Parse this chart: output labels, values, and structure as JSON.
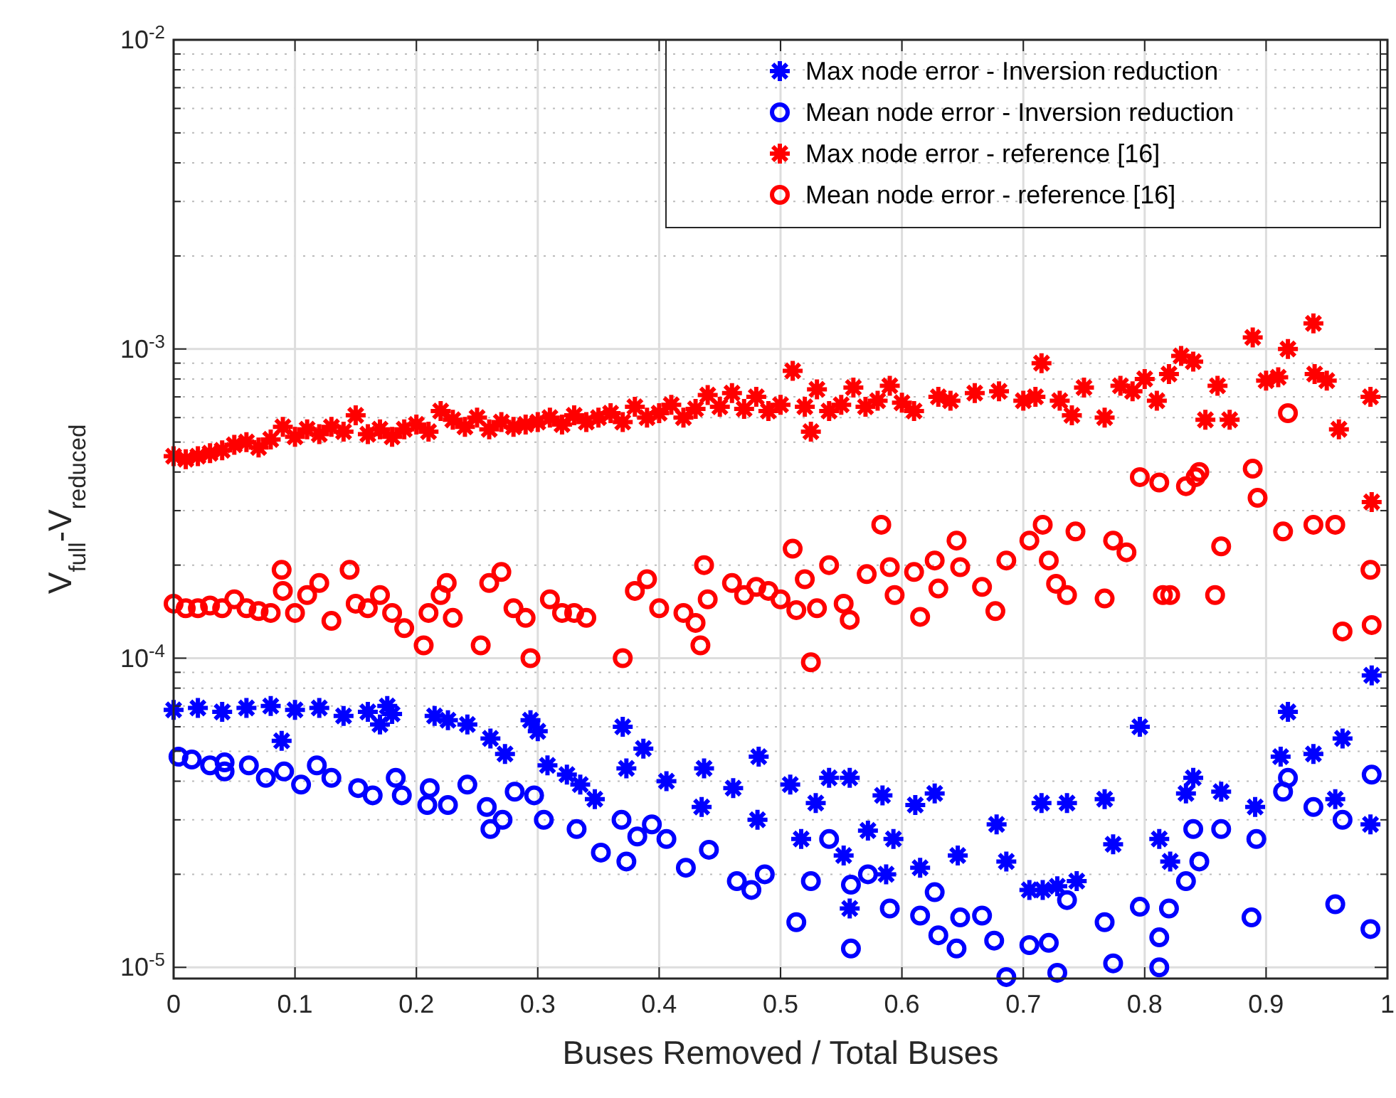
{
  "chart_data": {
    "type": "scatter",
    "xlabel": "Buses Removed / Total Buses",
    "ylabel": "V$_{full}$-V$_{reduced}$",
    "log": "y",
    "grid": true,
    "legend": "top right",
    "xlim": [
      0,
      1
    ],
    "ylim": [
      9.2e-06,
      0.01
    ],
    "xticks": [
      0,
      0.1,
      0.2,
      0.3,
      0.4,
      0.5,
      0.6,
      0.7,
      0.8,
      0.9,
      1
    ],
    "yticks": [
      {
        "value": 1e-05,
        "label": "10$^{-5}$"
      },
      {
        "value": 0.0001,
        "label": "10$^{-4}$"
      },
      {
        "value": 0.001,
        "label": "10$^{-3}$"
      },
      {
        "value": 0.01,
        "label": "10$^{-2}$"
      }
    ],
    "series": [
      {
        "name": "Max node error - Inversion reduction",
        "color": "#0000ff",
        "marker": "cross",
        "x": [
          0,
          0.02,
          0.04,
          0.06,
          0.08,
          0.089,
          0.1,
          0.12,
          0.14,
          0.16,
          0.17,
          0.176,
          0.18,
          0.215,
          0.226,
          0.242,
          0.261,
          0.273,
          0.294,
          0.3,
          0.308,
          0.324,
          0.335,
          0.347,
          0.37,
          0.373,
          0.387,
          0.406,
          0.435,
          0.437,
          0.461,
          0.481,
          0.482,
          0.508,
          0.517,
          0.529,
          0.54,
          0.552,
          0.557,
          0.557,
          0.572,
          0.584,
          0.587,
          0.593,
          0.611,
          0.615,
          0.627,
          0.646,
          0.678,
          0.686,
          0.705,
          0.715,
          0.716,
          0.728,
          0.736,
          0.744,
          0.767,
          0.774,
          0.796,
          0.812,
          0.821,
          0.834,
          0.84,
          0.863,
          0.891,
          0.912,
          0.918,
          0.939,
          0.957,
          0.963,
          0.986,
          0.987
        ],
        "values": [
          6.8e-05,
          6.9e-05,
          6.7e-05,
          6.9e-05,
          7e-05,
          5.4e-05,
          6.8e-05,
          6.9e-05,
          6.5e-05,
          6.7e-05,
          6.1e-05,
          7e-05,
          6.6e-05,
          6.5e-05,
          6.3e-05,
          6.1e-05,
          5.5e-05,
          4.9e-05,
          6.3e-05,
          5.8e-05,
          4.5e-05,
          4.2e-05,
          3.9e-05,
          3.5e-05,
          6e-05,
          4.4e-05,
          5.1e-05,
          4e-05,
          3.3e-05,
          4.4e-05,
          3.8e-05,
          3e-05,
          4.8e-05,
          3.9e-05,
          2.6e-05,
          3.4e-05,
          4.1e-05,
          2.3e-05,
          4.1e-05,
          1.55e-05,
          2.77e-05,
          3.6e-05,
          2e-05,
          2.6e-05,
          3.35e-05,
          2.1e-05,
          3.65e-05,
          2.3e-05,
          2.9e-05,
          2.2e-05,
          1.78e-05,
          3.4e-05,
          1.78e-05,
          1.83e-05,
          3.4e-05,
          1.9e-05,
          3.5e-05,
          2.5e-05,
          6e-05,
          2.6e-05,
          2.2e-05,
          3.65e-05,
          4.1e-05,
          3.7e-05,
          3.3e-05,
          4.8e-05,
          6.7e-05,
          4.9e-05,
          3.5e-05,
          5.5e-05,
          2.9e-05,
          8.8e-05
        ]
      },
      {
        "name": "Mean node error - Inversion reduction",
        "color": "#0000ff",
        "marker": "circle",
        "x": [
          0.004,
          0.015,
          0.03,
          0.042,
          0.042,
          0.062,
          0.076,
          0.091,
          0.105,
          0.118,
          0.13,
          0.152,
          0.164,
          0.183,
          0.188,
          0.209,
          0.211,
          0.226,
          0.242,
          0.258,
          0.261,
          0.271,
          0.281,
          0.297,
          0.305,
          0.332,
          0.352,
          0.369,
          0.373,
          0.382,
          0.394,
          0.406,
          0.422,
          0.441,
          0.464,
          0.476,
          0.487,
          0.513,
          0.525,
          0.54,
          0.558,
          0.558,
          0.572,
          0.59,
          0.615,
          0.627,
          0.63,
          0.645,
          0.648,
          0.666,
          0.676,
          0.686,
          0.705,
          0.721,
          0.728,
          0.736,
          0.767,
          0.774,
          0.796,
          0.812,
          0.812,
          0.82,
          0.834,
          0.84,
          0.845,
          0.863,
          0.888,
          0.892,
          0.914,
          0.918,
          0.939,
          0.957,
          0.963,
          0.986,
          0.987
        ],
        "values": [
          4.8e-05,
          4.7e-05,
          4.5e-05,
          4.6e-05,
          4.3e-05,
          4.5e-05,
          4.1e-05,
          4.3e-05,
          3.9e-05,
          4.5e-05,
          4.1e-05,
          3.8e-05,
          3.6e-05,
          4.1e-05,
          3.6e-05,
          3.35e-05,
          3.8e-05,
          3.35e-05,
          3.9e-05,
          3.3e-05,
          2.8e-05,
          3e-05,
          3.7e-05,
          3.6e-05,
          3e-05,
          2.8e-05,
          2.35e-05,
          3e-05,
          2.2e-05,
          2.65e-05,
          2.9e-05,
          2.6e-05,
          2.1e-05,
          2.4e-05,
          1.9e-05,
          1.78e-05,
          2e-05,
          1.4e-05,
          1.9e-05,
          2.6e-05,
          1.85e-05,
          1.15e-05,
          2e-05,
          1.55e-05,
          1.47e-05,
          1.75e-05,
          1.27e-05,
          1.15e-05,
          1.45e-05,
          1.47e-05,
          1.22e-05,
          9.3e-06,
          1.18e-05,
          1.2e-05,
          9.6e-06,
          1.65e-05,
          1.4e-05,
          1.03e-05,
          1.57e-05,
          1.25e-05,
          1e-05,
          1.55e-05,
          1.9e-05,
          2.8e-05,
          2.2e-05,
          2.8e-05,
          1.45e-05,
          2.6e-05,
          3.7e-05,
          4.1e-05,
          3.3e-05,
          1.6e-05,
          3e-05,
          1.33e-05,
          4.2e-05
        ]
      },
      {
        "name": "Max node error - reference [16]",
        "color": "#ff0000",
        "marker": "cross",
        "x": [
          0,
          0.01,
          0.02,
          0.03,
          0.04,
          0.05,
          0.06,
          0.07,
          0.08,
          0.09,
          0.1,
          0.11,
          0.12,
          0.13,
          0.14,
          0.15,
          0.16,
          0.17,
          0.18,
          0.19,
          0.2,
          0.21,
          0.22,
          0.23,
          0.24,
          0.25,
          0.26,
          0.27,
          0.28,
          0.29,
          0.3,
          0.31,
          0.32,
          0.33,
          0.34,
          0.35,
          0.36,
          0.37,
          0.38,
          0.39,
          0.4,
          0.41,
          0.42,
          0.43,
          0.44,
          0.45,
          0.46,
          0.47,
          0.48,
          0.49,
          0.5,
          0.51,
          0.52,
          0.525,
          0.53,
          0.54,
          0.55,
          0.56,
          0.57,
          0.58,
          0.59,
          0.6,
          0.61,
          0.63,
          0.64,
          0.66,
          0.68,
          0.7,
          0.71,
          0.715,
          0.73,
          0.74,
          0.75,
          0.767,
          0.78,
          0.79,
          0.8,
          0.81,
          0.82,
          0.83,
          0.84,
          0.85,
          0.86,
          0.87,
          0.889,
          0.9,
          0.91,
          0.918,
          0.939,
          0.94,
          0.95,
          0.96,
          0.986,
          0.987
        ],
        "values": [
          0.00045,
          0.00044,
          0.00045,
          0.00046,
          0.00047,
          0.00049,
          0.0005,
          0.00048,
          0.00051,
          0.00056,
          0.00052,
          0.00055,
          0.00053,
          0.00056,
          0.00054,
          0.00061,
          0.00053,
          0.00055,
          0.00052,
          0.00055,
          0.00057,
          0.00054,
          0.00063,
          0.00059,
          0.00056,
          0.0006,
          0.00055,
          0.00058,
          0.00056,
          0.00057,
          0.00058,
          0.0006,
          0.00057,
          0.00061,
          0.00058,
          0.0006,
          0.00062,
          0.00058,
          0.00065,
          0.0006,
          0.00062,
          0.00066,
          0.0006,
          0.00064,
          0.00071,
          0.00065,
          0.00072,
          0.00064,
          0.0007,
          0.00063,
          0.00066,
          0.00085,
          0.00065,
          0.00054,
          0.00074,
          0.00063,
          0.00066,
          0.00075,
          0.00065,
          0.00068,
          0.00076,
          0.00067,
          0.00063,
          0.0007,
          0.00068,
          0.00072,
          0.00073,
          0.00068,
          0.0007,
          0.0009,
          0.00068,
          0.00061,
          0.00075,
          0.0006,
          0.00076,
          0.00073,
          0.0008,
          0.00068,
          0.00083,
          0.00095,
          0.00091,
          0.00059,
          0.00076,
          0.00059,
          0.00109,
          0.00079,
          0.00081,
          0.001,
          0.00121,
          0.00083,
          0.00079,
          0.00055,
          0.0007,
          0.00032
        ]
      },
      {
        "name": "Mean node error - reference [16]",
        "color": "#ff0000",
        "marker": "circle",
        "x": [
          0,
          0.01,
          0.02,
          0.03,
          0.04,
          0.05,
          0.06,
          0.07,
          0.08,
          0.089,
          0.09,
          0.1,
          0.11,
          0.12,
          0.13,
          0.145,
          0.15,
          0.16,
          0.17,
          0.18,
          0.19,
          0.206,
          0.21,
          0.22,
          0.225,
          0.23,
          0.253,
          0.26,
          0.27,
          0.28,
          0.29,
          0.294,
          0.31,
          0.32,
          0.33,
          0.34,
          0.37,
          0.38,
          0.39,
          0.4,
          0.42,
          0.43,
          0.434,
          0.437,
          0.44,
          0.46,
          0.47,
          0.48,
          0.49,
          0.5,
          0.51,
          0.513,
          0.52,
          0.525,
          0.53,
          0.54,
          0.552,
          0.557,
          0.571,
          0.583,
          0.59,
          0.594,
          0.61,
          0.615,
          0.627,
          0.63,
          0.645,
          0.648,
          0.666,
          0.677,
          0.686,
          0.705,
          0.716,
          0.721,
          0.727,
          0.736,
          0.743,
          0.767,
          0.774,
          0.785,
          0.796,
          0.812,
          0.815,
          0.821,
          0.834,
          0.842,
          0.845,
          0.858,
          0.863,
          0.889,
          0.893,
          0.914,
          0.918,
          0.939,
          0.957,
          0.963,
          0.986,
          0.987
        ],
        "values": [
          0.00015,
          0.000145,
          0.000145,
          0.000148,
          0.000145,
          0.000155,
          0.000145,
          0.000142,
          0.00014,
          0.000193,
          0.000165,
          0.00014,
          0.00016,
          0.000175,
          0.000132,
          0.000193,
          0.00015,
          0.000145,
          0.00016,
          0.00014,
          0.000125,
          0.00011,
          0.00014,
          0.00016,
          0.000175,
          0.000135,
          0.00011,
          0.000175,
          0.00019,
          0.000145,
          0.000135,
          0.0001,
          0.000155,
          0.00014,
          0.00014,
          0.000135,
          0.0001,
          0.000165,
          0.00018,
          0.000145,
          0.00014,
          0.00013,
          0.00011,
          0.0002,
          0.000155,
          0.000175,
          0.00016,
          0.00017,
          0.000165,
          0.000155,
          0.000226,
          0.000143,
          0.00018,
          9.7e-05,
          0.000145,
          0.0002,
          0.00015,
          0.000133,
          0.000187,
          0.00027,
          0.000197,
          0.00016,
          0.00019,
          0.000136,
          0.000207,
          0.000168,
          0.00024,
          0.000197,
          0.00017,
          0.000142,
          0.000207,
          0.00024,
          0.00027,
          0.000207,
          0.000174,
          0.00016,
          0.000257,
          0.000156,
          0.00024,
          0.00022,
          0.000385,
          0.00037,
          0.00016,
          0.00016,
          0.00036,
          0.000385,
          0.0004,
          0.00016,
          0.00023,
          0.00041,
          0.00033,
          0.000257,
          0.00062,
          0.00027,
          0.00027,
          0.000122,
          0.000193,
          0.000128
        ]
      }
    ]
  }
}
